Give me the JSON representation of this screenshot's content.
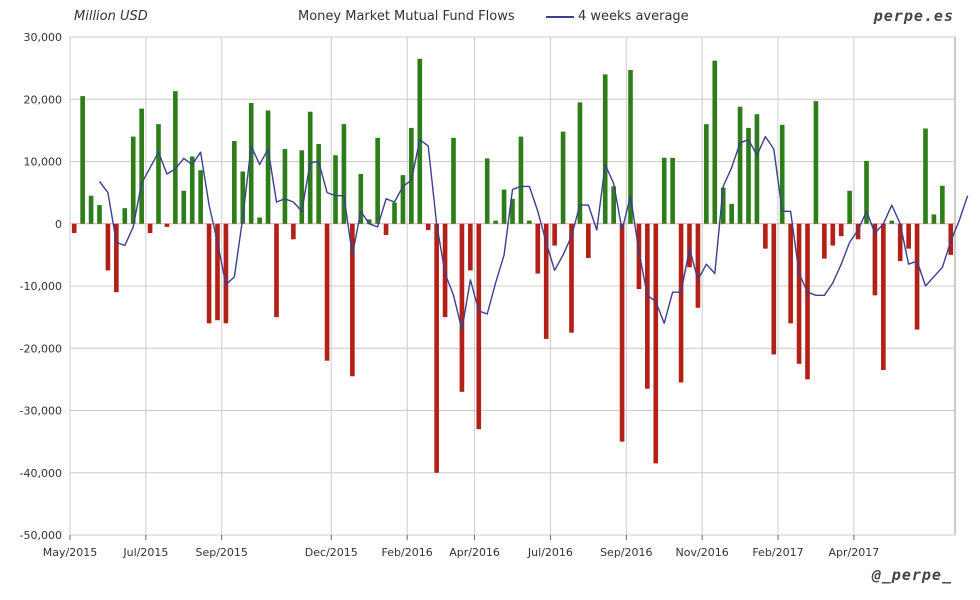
{
  "header": {
    "unit_label": "Million USD",
    "title": "Money Market Mutual Fund Flows",
    "legend_label": "4 weeks average",
    "brand_top": "perpe.es",
    "brand_bottom": "@_perpe_"
  },
  "colors": {
    "positive_bar": "#2e7d1a",
    "negative_bar": "#b22017",
    "line": "#3b3f8f",
    "grid": "#cccccc",
    "zero_line": "#e8a3a3"
  },
  "chart_data": {
    "type": "bar",
    "title": "Money Market Mutual Fund Flows",
    "ylabel": "Million USD",
    "ylim": [
      -50000,
      30000
    ],
    "yticks": [
      30000,
      20000,
      10000,
      0,
      -10000,
      -20000,
      -30000,
      -40000,
      -50000
    ],
    "ytick_labels": [
      "30,000",
      "20,000",
      "10,000",
      "0",
      "-10,000",
      "-20,000",
      "-30,000",
      "-40,000",
      "-50,000"
    ],
    "xticks": [
      {
        "index": 0,
        "label": "May/2015"
      },
      {
        "index": 9,
        "label": "Jul/2015"
      },
      {
        "index": 18,
        "label": "Sep/2015"
      },
      {
        "index": 31,
        "label": "Dec/2015"
      },
      {
        "index": 40,
        "label": "Feb/2016"
      },
      {
        "index": 48,
        "label": "Apr/2016"
      },
      {
        "index": 57,
        "label": "Jul/2016"
      },
      {
        "index": 66,
        "label": "Sep/2016"
      },
      {
        "index": 75,
        "label": "Nov/2016"
      },
      {
        "index": 84,
        "label": "Feb/2017"
      },
      {
        "index": 93,
        "label": "Apr/2017"
      }
    ],
    "series": [
      {
        "name": "Weekly flows",
        "type": "bar",
        "values": [
          -1500,
          20500,
          4500,
          3000,
          -7500,
          -11000,
          2500,
          14000,
          18500,
          -1500,
          16000,
          -500,
          21300,
          5300,
          10800,
          8600,
          -16000,
          -15500,
          -16000,
          13300,
          8400,
          19400,
          1000,
          18200,
          -15000,
          12000,
          -2500,
          11800,
          18000,
          12800,
          -22000,
          11000,
          16000,
          -24500,
          8000,
          700,
          13800,
          -1800,
          3400,
          7800,
          15400,
          26500,
          -1000,
          -40000,
          -15000,
          13800,
          -27000,
          -7500,
          -33000,
          10500,
          500,
          5500,
          4000,
          14000,
          500,
          -8000,
          -18500,
          -3500,
          14800,
          -17500,
          19500,
          -5500,
          0,
          24000,
          6000,
          -35000,
          24700,
          -10500,
          -26500,
          -38500,
          10600,
          10600,
          -25500,
          -7000,
          -13500,
          16000,
          26200,
          5800,
          3200,
          18800,
          15400,
          17600,
          -4000,
          -21000,
          15900,
          -16000,
          -22500,
          -25000,
          19700,
          -5600,
          -3500,
          -2000,
          5300,
          -2500,
          10100,
          -11500,
          -23500,
          500,
          -6000,
          -4000,
          -17000,
          15300,
          1500,
          6100,
          -5000
        ]
      },
      {
        "name": "4 weeks average",
        "type": "line",
        "start_index": 3,
        "values": [
          6800,
          5000,
          -3000,
          -3500,
          -500,
          6500,
          9000,
          11500,
          8000,
          8800,
          10500,
          9500,
          11500,
          3000,
          -3000,
          -9800,
          -8500,
          1000,
          12500,
          9500,
          12000,
          3500,
          4000,
          3500,
          2000,
          9800,
          10000,
          5000,
          4500,
          4500,
          -5000,
          2000,
          0,
          -500,
          4000,
          3500,
          6000,
          7000,
          13500,
          12500,
          0,
          -8000,
          -11500,
          -17000,
          -9000,
          -14000,
          -14500,
          -9500,
          -5000,
          5500,
          6000,
          6000,
          2000,
          -3000,
          -7500,
          -5000,
          -2000,
          3000,
          3000,
          -1000,
          9500,
          6500,
          -1000,
          4500,
          -4500,
          -11500,
          -12500,
          -16000,
          -11000,
          -11000,
          -4000,
          -9000,
          -6500,
          -8000,
          6000,
          9000,
          13000,
          13500,
          11000,
          14000,
          12000,
          2000,
          2000,
          -8000,
          -11000,
          -11500,
          -11500,
          -9500,
          -6500,
          -3000,
          -1000,
          2000,
          -1500,
          0,
          3000,
          0,
          -6500,
          -6000,
          -10000,
          -8500,
          -7000,
          -2800,
          500,
          4500
        ]
      }
    ]
  }
}
